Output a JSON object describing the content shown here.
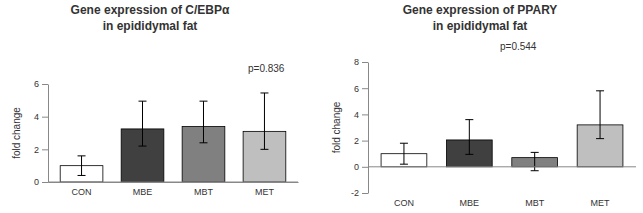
{
  "chart_data": [
    {
      "type": "bar",
      "title": "Gene expression of C/EBPα\nin epididymal fat",
      "y_label": "fold change",
      "annotation": "p=0.836",
      "categories": [
        "CON",
        "MBE",
        "MBT",
        "MET"
      ],
      "values": [
        1.0,
        3.25,
        3.4,
        3.1
      ],
      "error_minus": [
        0.6,
        1.05,
        1.0,
        1.1
      ],
      "error_plus": [
        0.6,
        1.7,
        1.55,
        2.35
      ],
      "colors": [
        "#ffffff",
        "#404040",
        "#808080",
        "#bfbfbf"
      ],
      "ylim": [
        0,
        6
      ],
      "yticks": [
        0,
        2,
        4,
        6
      ],
      "grid": false
    },
    {
      "type": "bar",
      "title": "Gene expression of PPARY\nin epididymal fat",
      "y_label": "fold change",
      "annotation": "p=0.544",
      "categories": [
        "CON",
        "MBE",
        "MBT",
        "MET"
      ],
      "values": [
        1.0,
        2.05,
        0.7,
        3.2
      ],
      "error_minus": [
        0.8,
        1.1,
        1.0,
        1.05
      ],
      "error_plus": [
        0.8,
        1.55,
        0.4,
        2.6
      ],
      "colors": [
        "#ffffff",
        "#404040",
        "#808080",
        "#bfbfbf"
      ],
      "ylim": [
        -2,
        8
      ],
      "yticks": [
        -2,
        0,
        2,
        4,
        6,
        8
      ],
      "grid": false
    }
  ]
}
